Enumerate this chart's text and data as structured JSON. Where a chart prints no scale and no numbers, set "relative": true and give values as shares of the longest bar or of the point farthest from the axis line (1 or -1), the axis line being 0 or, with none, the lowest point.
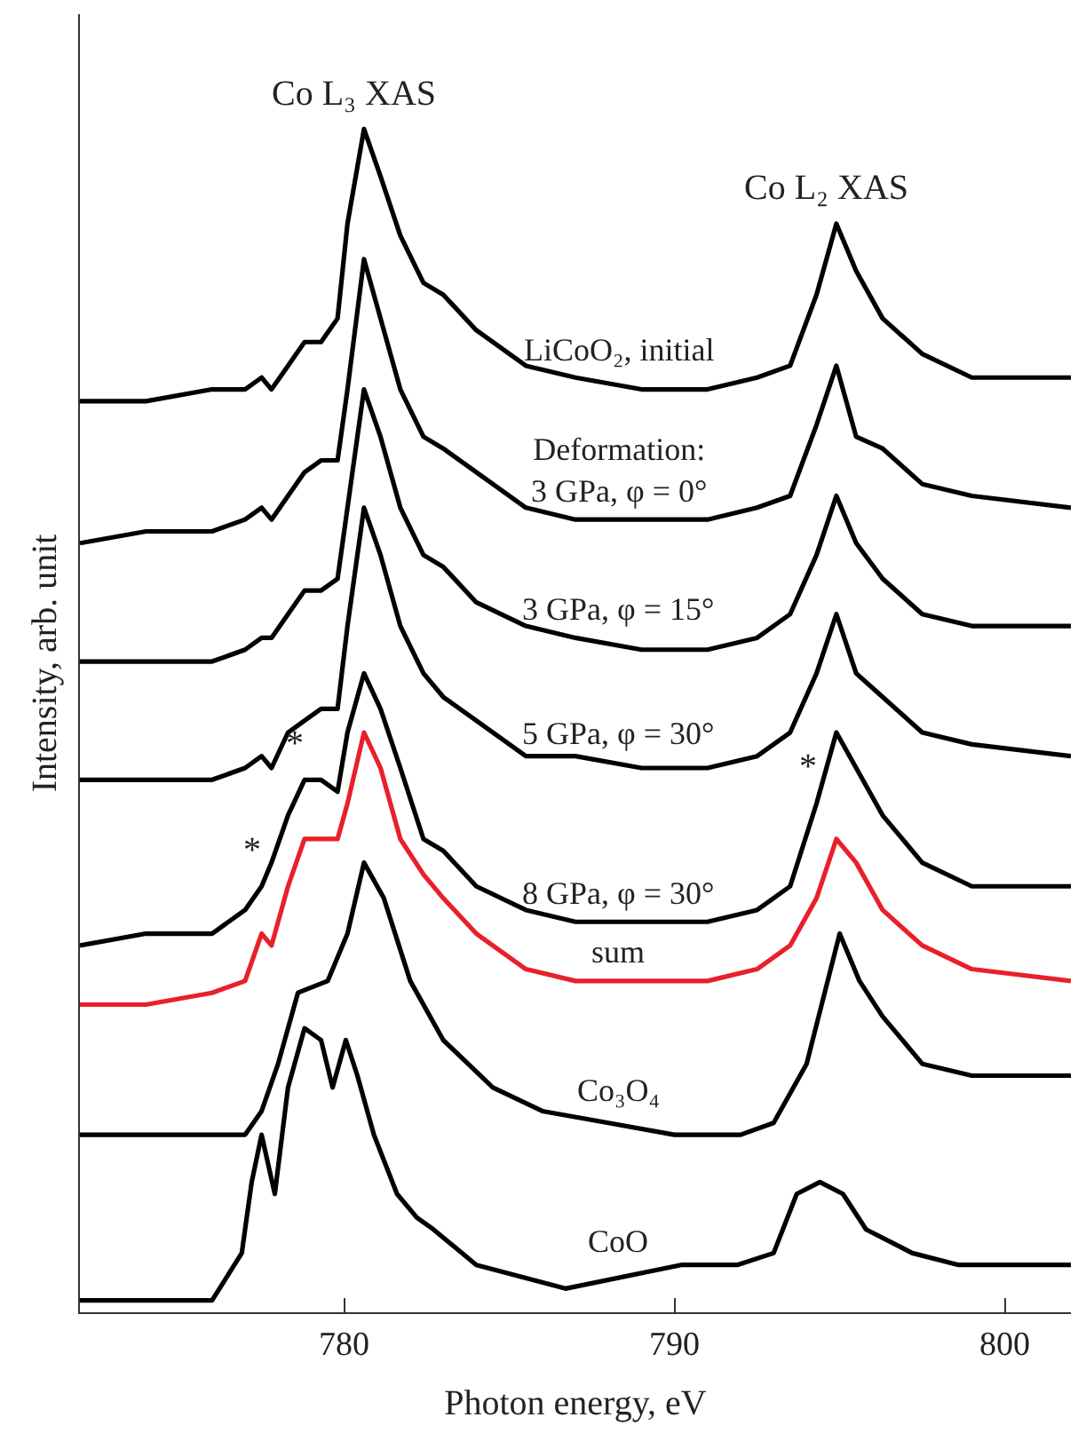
{
  "chart_data": {
    "type": "line",
    "relative": true,
    "xlabel": "Photon energy, eV",
    "ylabel": "Intensity, arb. unit",
    "xlim": [
      772,
      802
    ],
    "xticks": [
      780,
      790,
      800
    ],
    "legend": false,
    "x": [
      772,
      774,
      776,
      777,
      777.5,
      777.8,
      778.3,
      778.8,
      779.3,
      779.8,
      780.1,
      780.6,
      781.1,
      781.7,
      782.4,
      783,
      784,
      785.5,
      787,
      789,
      791,
      792.5,
      793.5,
      794.3,
      794.9,
      795.5,
      796.3,
      797.5,
      799,
      802
    ],
    "series": [
      {
        "name": "LiCoO₂, initial",
        "color": "#000000",
        "values": [
          0.77,
          0.77,
          0.78,
          0.78,
          0.79,
          0.78,
          0.8,
          0.82,
          0.82,
          0.84,
          0.92,
          1.0,
          0.96,
          0.91,
          0.87,
          0.86,
          0.83,
          0.8,
          0.79,
          0.78,
          0.78,
          0.79,
          0.8,
          0.86,
          0.92,
          0.88,
          0.84,
          0.81,
          0.79,
          0.79
        ]
      },
      {
        "name": "Deformation:\n3 GPa, φ = 0°",
        "color": "#000000",
        "values": [
          0.65,
          0.66,
          0.66,
          0.67,
          0.68,
          0.67,
          0.69,
          0.71,
          0.72,
          0.72,
          0.78,
          0.89,
          0.84,
          0.78,
          0.74,
          0.73,
          0.71,
          0.68,
          0.67,
          0.67,
          0.67,
          0.68,
          0.69,
          0.75,
          0.8,
          0.74,
          0.73,
          0.7,
          0.69,
          0.68
        ]
      },
      {
        "name": "3 GPa, φ = 15°",
        "color": "#000000",
        "values": [
          0.55,
          0.55,
          0.55,
          0.56,
          0.57,
          0.57,
          0.59,
          0.61,
          0.61,
          0.62,
          0.68,
          0.78,
          0.74,
          0.68,
          0.64,
          0.63,
          0.6,
          0.58,
          0.57,
          0.56,
          0.56,
          0.57,
          0.59,
          0.64,
          0.69,
          0.65,
          0.62,
          0.59,
          0.58,
          0.58
        ]
      },
      {
        "name": "5 GPa, φ = 30°",
        "color": "#000000",
        "values": [
          0.45,
          0.45,
          0.45,
          0.46,
          0.47,
          0.46,
          0.49,
          0.5,
          0.51,
          0.51,
          0.58,
          0.68,
          0.64,
          0.58,
          0.54,
          0.52,
          0.5,
          0.47,
          0.47,
          0.46,
          0.46,
          0.47,
          0.49,
          0.54,
          0.59,
          0.54,
          0.52,
          0.49,
          0.48,
          0.47
        ]
      },
      {
        "name": "8 GPa, φ = 30°",
        "color": "#000000",
        "values": [
          0.31,
          0.32,
          0.32,
          0.34,
          0.36,
          0.38,
          0.42,
          0.45,
          0.45,
          0.44,
          0.49,
          0.54,
          0.51,
          0.46,
          0.4,
          0.39,
          0.36,
          0.34,
          0.33,
          0.33,
          0.33,
          0.34,
          0.36,
          0.43,
          0.49,
          0.46,
          0.42,
          0.38,
          0.36,
          0.36
        ]
      },
      {
        "name": "sum",
        "color": "#e8202a",
        "values": [
          0.26,
          0.26,
          0.27,
          0.28,
          0.32,
          0.31,
          0.36,
          0.4,
          0.4,
          0.4,
          0.43,
          0.49,
          0.46,
          0.4,
          0.37,
          0.35,
          0.32,
          0.29,
          0.28,
          0.28,
          0.28,
          0.29,
          0.31,
          0.35,
          0.4,
          0.38,
          0.34,
          0.31,
          0.29,
          0.28
        ]
      },
      {
        "name": "Co₃O₄",
        "color": "#000000",
        "x": [
          772,
          774,
          776,
          777,
          777.5,
          778,
          778.6,
          779.5,
          780.1,
          780.6,
          781.2,
          782,
          783,
          784.5,
          786,
          788,
          790,
          792,
          793,
          794,
          795,
          795.6,
          796.3,
          797.5,
          799,
          802
        ],
        "values": [
          0.15,
          0.15,
          0.15,
          0.15,
          0.17,
          0.21,
          0.27,
          0.28,
          0.32,
          0.38,
          0.35,
          0.28,
          0.23,
          0.19,
          0.17,
          0.16,
          0.15,
          0.15,
          0.16,
          0.21,
          0.32,
          0.28,
          0.25,
          0.21,
          0.2,
          0.2
        ]
      },
      {
        "name": "CoO",
        "color": "#000000",
        "x": [
          772,
          774,
          776,
          776.9,
          777.2,
          777.5,
          777.9,
          778.3,
          778.8,
          779.3,
          779.65,
          780.05,
          780.4,
          780.9,
          781.6,
          782.2,
          782.7,
          784,
          786.7,
          790.2,
          791.9,
          793,
          793.7,
          794.4,
          795.1,
          795.8,
          797.2,
          798.6,
          802
        ],
        "values": [
          0.01,
          0.01,
          0.01,
          0.05,
          0.11,
          0.15,
          0.1,
          0.19,
          0.24,
          0.23,
          0.19,
          0.23,
          0.2,
          0.15,
          0.1,
          0.08,
          0.07,
          0.04,
          0.02,
          0.04,
          0.04,
          0.05,
          0.1,
          0.11,
          0.1,
          0.07,
          0.05,
          0.04,
          0.04
        ]
      }
    ],
    "annotations": [
      {
        "text": "Co L₃ XAS",
        "x": 780.6,
        "y": 1.0
      },
      {
        "text": "Co L₂ XAS",
        "x": 794.9,
        "y": 0.92
      },
      {
        "text": "*",
        "x": 777.5,
        "y": 0.36
      },
      {
        "text": "*",
        "x": 778.8,
        "y": 0.45
      },
      {
        "text": "*",
        "x": 794.3,
        "y": 0.43
      }
    ]
  }
}
